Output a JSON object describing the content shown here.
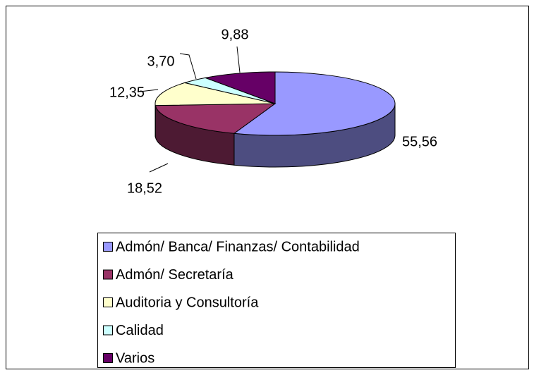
{
  "chart_data": {
    "type": "pie",
    "categories": [
      "Admón/ Banca/ Finanzas/ Contabilidad",
      "Admón/ Secretaría",
      "Auditoria y Consultoría",
      "Calidad",
      "Varios"
    ],
    "values": [
      55.56,
      18.52,
      12.35,
      3.7,
      9.88
    ],
    "value_labels": [
      "55,56",
      "18,52",
      "12,35",
      "3,70",
      "9,88"
    ],
    "colors": [
      "#9999ff",
      "#993366",
      "#ffffcc",
      "#ccffff",
      "#660066"
    ],
    "legend": "bottom"
  }
}
